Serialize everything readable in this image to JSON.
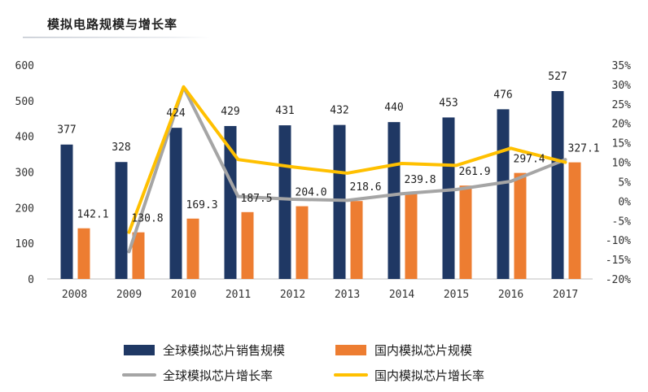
{
  "title": "模拟电路规模与增长率",
  "chart_data": {
    "type": "bar",
    "categories": [
      "2008",
      "2009",
      "2010",
      "2011",
      "2012",
      "2013",
      "2014",
      "2015",
      "2016",
      "2017"
    ],
    "series": [
      {
        "name": "全球模拟芯片销售规模",
        "kind": "bar",
        "axis": "left",
        "color": "#1f3864",
        "values": [
          377,
          328,
          424,
          429,
          431,
          432,
          440,
          453,
          476,
          527
        ]
      },
      {
        "name": "国内模拟芯片规模",
        "kind": "bar",
        "axis": "left",
        "color": "#ed7d31",
        "values": [
          142.1,
          130.8,
          169.3,
          187.5,
          204.0,
          218.6,
          239.8,
          261.9,
          297.4,
          327.1
        ]
      },
      {
        "name": "全球模拟芯片增长率",
        "kind": "line",
        "axis": "right",
        "color": "#a5a5a5",
        "values": [
          null,
          -13.0,
          29.3,
          1.2,
          0.5,
          0.2,
          1.9,
          3.0,
          5.1,
          10.7
        ]
      },
      {
        "name": "国内模拟芯片增长率",
        "kind": "line",
        "axis": "right",
        "color": "#ffc000",
        "values": [
          null,
          -8.0,
          29.4,
          10.7,
          8.8,
          7.2,
          9.7,
          9.2,
          13.6,
          10.0
        ]
      }
    ],
    "bar_value_labels": [
      [
        "377",
        "328",
        "424",
        "429",
        "431",
        "432",
        "440",
        "453",
        "476",
        "527"
      ],
      [
        "142.1",
        "130.8",
        "169.3",
        "187.5",
        "204.0",
        "218.6",
        "239.8",
        "261.9",
        "297.4",
        "327.1"
      ]
    ],
    "y_left": {
      "min": 0,
      "max": 600,
      "ticks": [
        "0",
        "100",
        "200",
        "300",
        "400",
        "500",
        "600"
      ]
    },
    "y_right": {
      "min": -20,
      "max": 35,
      "ticks": [
        "-20%",
        "-15%",
        "-10%",
        "-5%",
        "0%",
        "5%",
        "10%",
        "15%",
        "20%",
        "25%",
        "30%",
        "35%"
      ]
    },
    "grid": false,
    "legend": "bottom"
  }
}
